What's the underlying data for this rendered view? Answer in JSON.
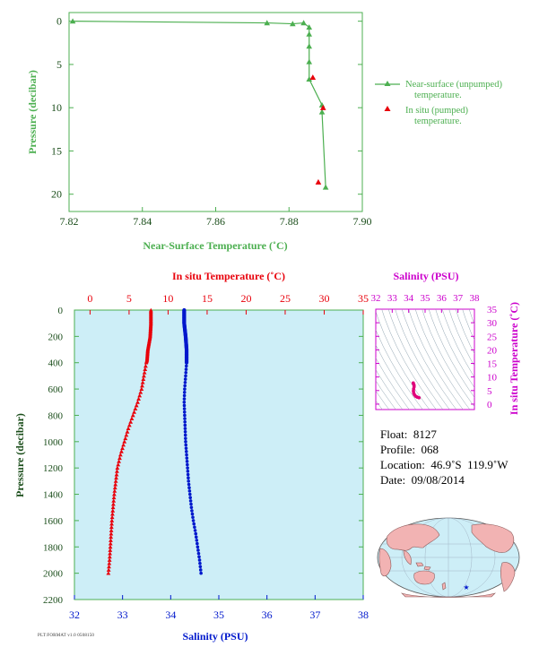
{
  "colors": {
    "green": "#4caf50",
    "red": "#e8000b",
    "blue": "#0018cc",
    "magenta": "#cc00cc",
    "panel_bg": "#cdeef7",
    "axis_text_green": "#1a4d1a"
  },
  "chart_data": [
    {
      "type": "line",
      "xlabel": "Near-Surface Temperature (˚C)",
      "ylabel": "Pressure (decibar)",
      "xlim": [
        7.82,
        7.9
      ],
      "ylim": [
        22,
        -1
      ],
      "xticks": [
        "7.82",
        "7.84",
        "7.86",
        "7.88",
        "7.90"
      ],
      "yticks": [
        "0",
        "5",
        "10",
        "15",
        "20"
      ],
      "legend": [
        "Near-surface (unpumped) temperature.",
        "In situ (pumped) temperature."
      ],
      "legend_position": "right",
      "series": [
        {
          "name": "Near-surface (unpumped) temperature.",
          "marker": "triangle",
          "points": [
            [
              7.821,
              0.0
            ],
            [
              7.874,
              0.2
            ],
            [
              7.881,
              0.3
            ],
            [
              7.884,
              0.2
            ],
            [
              7.8855,
              0.7
            ],
            [
              7.8855,
              1.5
            ],
            [
              7.8855,
              2.9
            ],
            [
              7.8855,
              4.7
            ],
            [
              7.8855,
              6.7
            ],
            [
              7.889,
              9.7
            ],
            [
              7.889,
              10.5
            ],
            [
              7.89,
              19.2
            ]
          ]
        },
        {
          "name": "In situ (pumped) temperature.",
          "marker": "triangle",
          "points": [
            [
              7.8865,
              6.5
            ],
            [
              7.8893,
              10.0
            ],
            [
              7.888,
              18.6
            ]
          ]
        }
      ]
    },
    {
      "type": "scatter",
      "top_xlabel": "In situ Temperature (˚C)",
      "bottom_xlabel": "Salinity (PSU)",
      "ylabel": "Pressure (decibar)",
      "temp_xlim": [
        -2,
        35
      ],
      "sal_xlim": [
        32,
        38
      ],
      "ylim": [
        2200,
        0
      ],
      "temp_xticks": [
        "0",
        "5",
        "10",
        "15",
        "20",
        "25",
        "30",
        "35"
      ],
      "sal_xticks": [
        "32",
        "33",
        "34",
        "35",
        "36",
        "37",
        "38"
      ],
      "yticks": [
        "0",
        "200",
        "400",
        "600",
        "800",
        "1000",
        "1200",
        "1400",
        "1600",
        "1800",
        "2000",
        "2200"
      ],
      "temperature_profile": [
        [
          0,
          7.8
        ],
        [
          100,
          7.8
        ],
        [
          200,
          7.7
        ],
        [
          300,
          7.4
        ],
        [
          380,
          7.3
        ],
        [
          400,
          7.2
        ],
        [
          500,
          6.9
        ],
        [
          600,
          6.6
        ],
        [
          700,
          6.1
        ],
        [
          800,
          5.5
        ],
        [
          900,
          4.9
        ],
        [
          1000,
          4.4
        ],
        [
          1100,
          3.9
        ],
        [
          1200,
          3.5
        ],
        [
          1300,
          3.3
        ],
        [
          1400,
          3.1
        ],
        [
          1500,
          2.95
        ],
        [
          1600,
          2.8
        ],
        [
          1700,
          2.7
        ],
        [
          1800,
          2.6
        ],
        [
          1900,
          2.5
        ],
        [
          2000,
          2.35
        ]
      ],
      "salinity_profile": [
        [
          0,
          34.28
        ],
        [
          100,
          34.28
        ],
        [
          200,
          34.31
        ],
        [
          300,
          34.33
        ],
        [
          400,
          34.33
        ],
        [
          500,
          34.31
        ],
        [
          600,
          34.29
        ],
        [
          700,
          34.28
        ],
        [
          800,
          34.29
        ],
        [
          900,
          34.3
        ],
        [
          1000,
          34.31
        ],
        [
          1100,
          34.33
        ],
        [
          1200,
          34.35
        ],
        [
          1300,
          34.37
        ],
        [
          1400,
          34.4
        ],
        [
          1500,
          34.43
        ],
        [
          1600,
          34.47
        ],
        [
          1700,
          34.52
        ],
        [
          1800,
          34.56
        ],
        [
          1900,
          34.6
        ],
        [
          2000,
          34.63
        ]
      ]
    },
    {
      "type": "scatter",
      "top_xlabel": "Salinity (PSU)",
      "right_ylabel": "In situ Temperature (˚C)",
      "xlim": [
        32,
        38
      ],
      "ylim": [
        -2,
        35
      ],
      "xticks": [
        "32",
        "33",
        "34",
        "35",
        "36",
        "37",
        "38"
      ],
      "yticks": [
        "0",
        "5",
        "10",
        "15",
        "20",
        "25",
        "30",
        "35"
      ],
      "ts_points": [
        [
          34.28,
          7.8
        ],
        [
          34.3,
          7.4
        ],
        [
          34.33,
          7.0
        ],
        [
          34.33,
          6.4
        ],
        [
          34.3,
          5.6
        ],
        [
          34.29,
          4.8
        ],
        [
          34.31,
          4.0
        ],
        [
          34.36,
          3.4
        ],
        [
          34.43,
          2.9
        ],
        [
          34.52,
          2.6
        ],
        [
          34.63,
          2.35
        ]
      ]
    }
  ],
  "info": {
    "float": "Float:  8127",
    "profile": "Profile:  068",
    "location": "Location:  46.9˚S  119.9˚W",
    "date": "Date:  09/08/2014"
  },
  "footer": "PLT:FORMAT v1.0 0508150"
}
